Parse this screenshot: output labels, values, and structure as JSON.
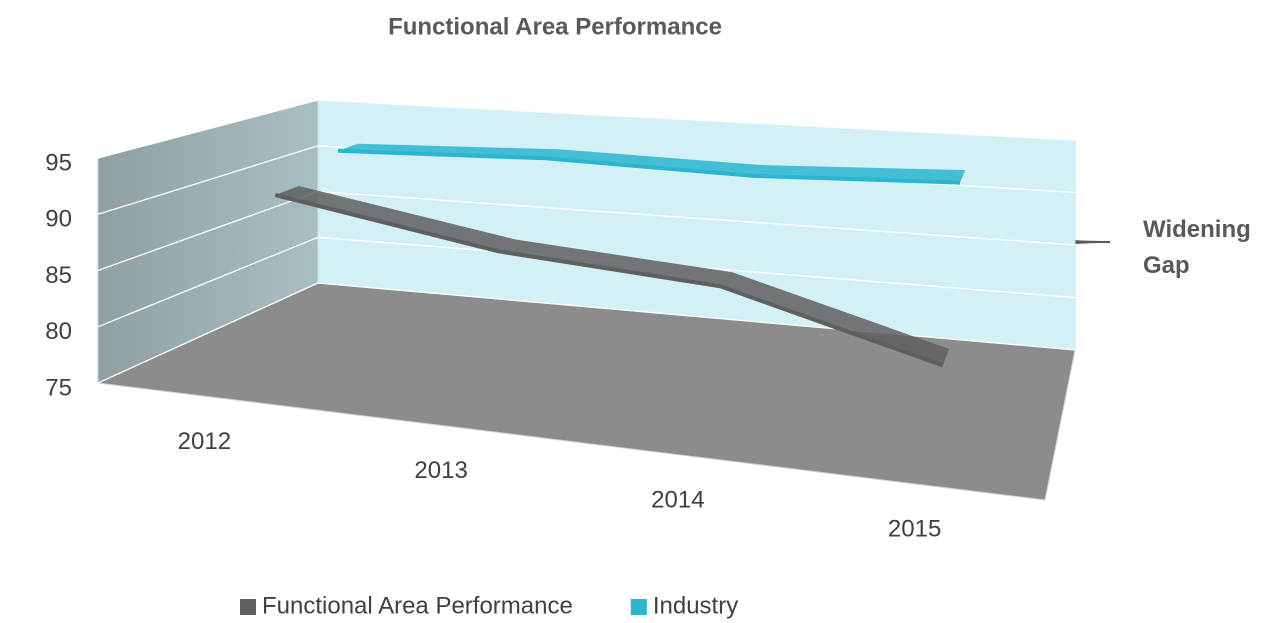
{
  "chart_data": {
    "type": "line3d",
    "title": "Functional Area Performance",
    "categories": [
      "2012",
      "2013",
      "2014",
      "2015"
    ],
    "series": [
      {
        "name": "Functional Area Performance",
        "color": "#5f5f5f",
        "values": [
          91,
          88,
          87,
          82
        ]
      },
      {
        "name": "Industry",
        "color": "#2ab5d0",
        "values": [
          93,
          94,
          94,
          95
        ]
      }
    ],
    "ylim": [
      75,
      95
    ],
    "yticks": [
      75,
      80,
      85,
      90,
      95
    ],
    "grid": true,
    "annotation": "Widening Gap",
    "legend": "bottom"
  }
}
